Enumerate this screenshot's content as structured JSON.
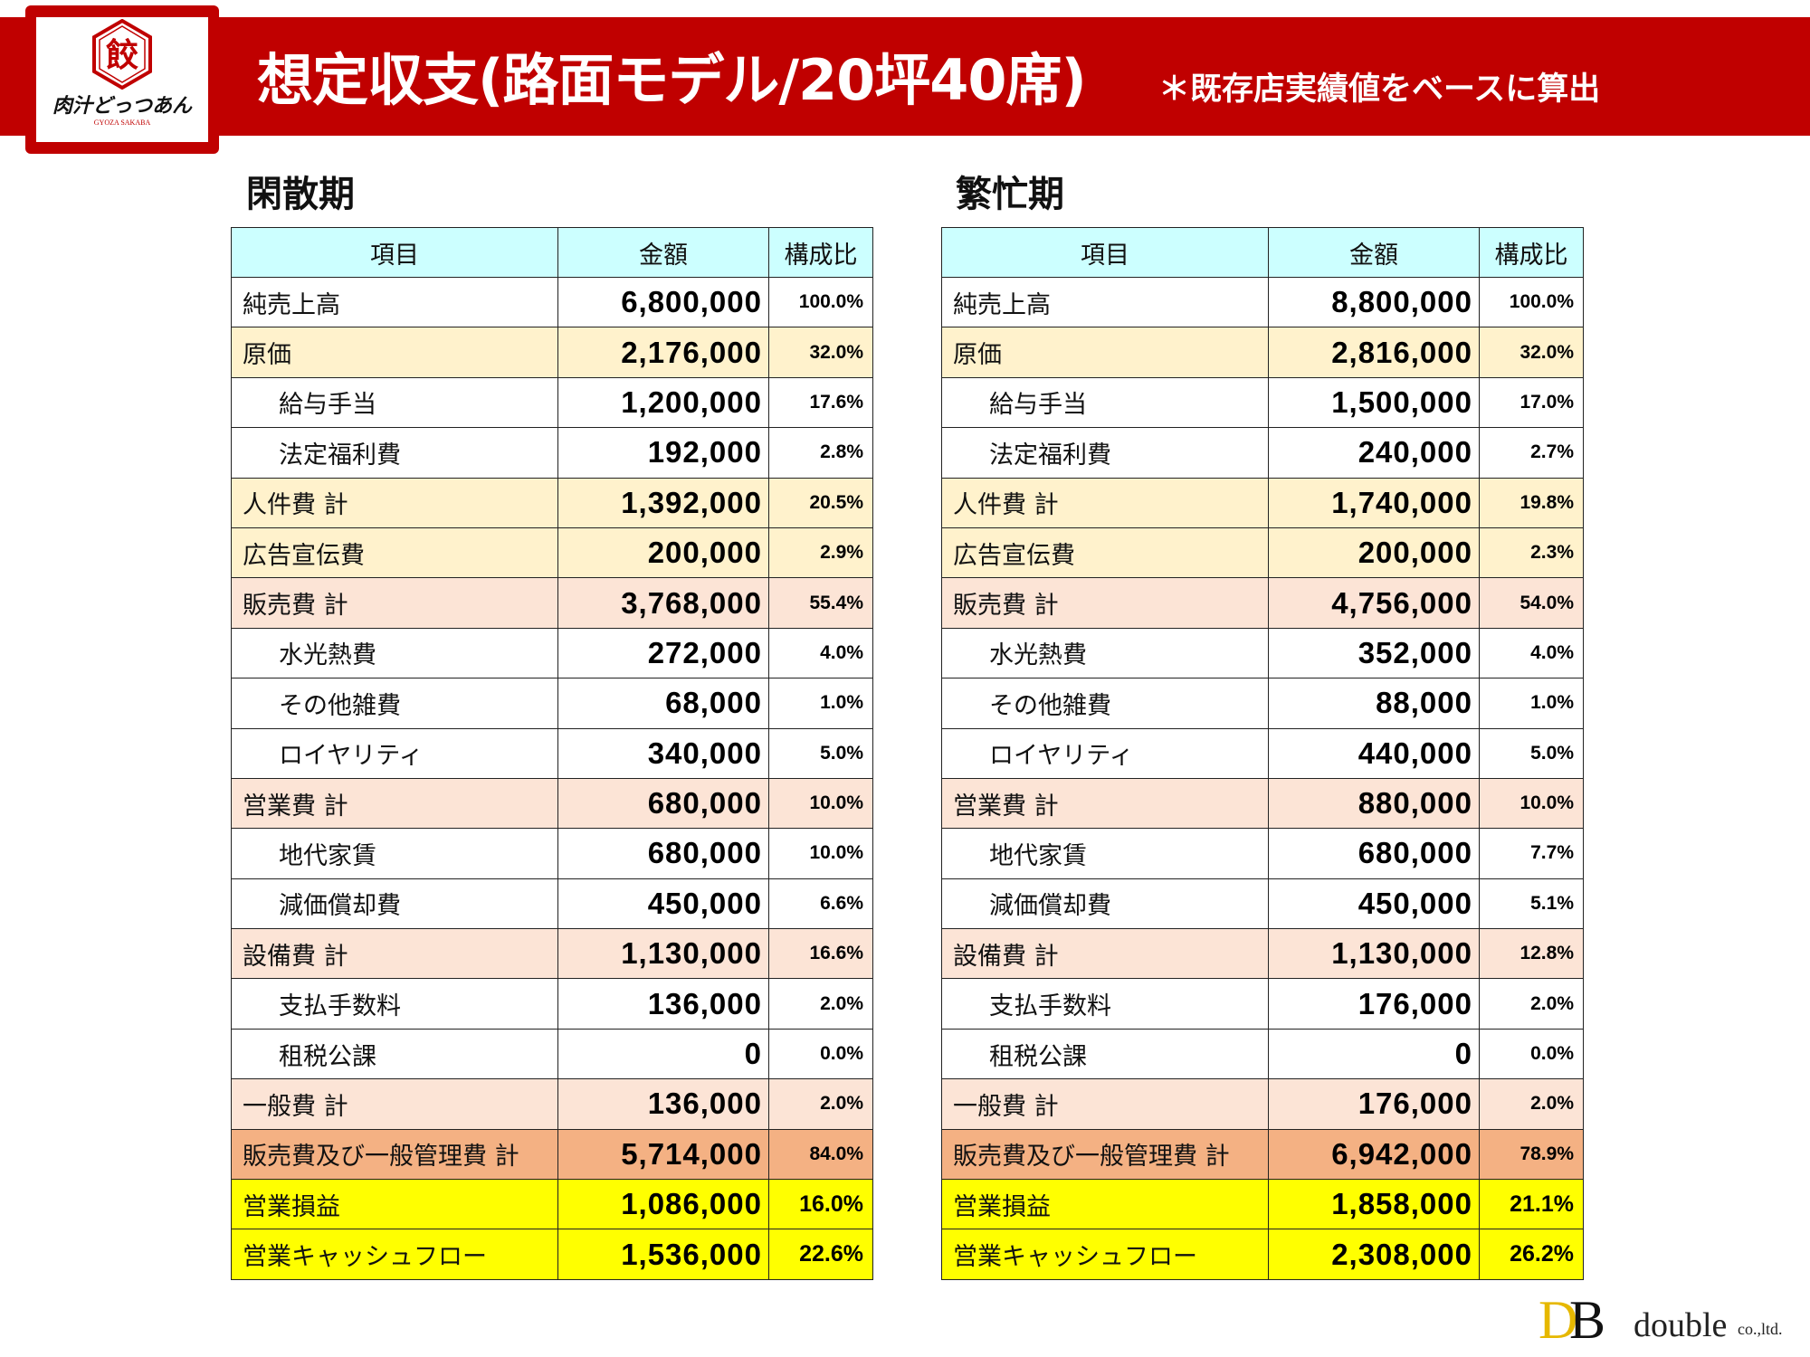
{
  "header": {
    "title": "想定収支(路面モデル/20坪40席)",
    "subtitle": "＊既存店実績値をベースに算出",
    "logo_text": "肉汁どっつあん",
    "logo_sub": "GYOZA SAKABA",
    "logo_mark": "餃"
  },
  "colors": {
    "band": "#c00000",
    "header_cell": "#ccffff",
    "cream": "#fff2cc",
    "peach": "#fce4d6",
    "orange": "#f4b183",
    "yellow": "#ffff00"
  },
  "columns": [
    "項目",
    "金額",
    "構成比"
  ],
  "tables": [
    {
      "title": "閑散期",
      "rows": [
        {
          "label": "純売上高",
          "amount": "6,800,000",
          "ratio": "100.0%",
          "style": "white",
          "indent": false
        },
        {
          "label": "原価",
          "amount": "2,176,000",
          "ratio": "32.0%",
          "style": "cream",
          "indent": false
        },
        {
          "label": "給与手当",
          "amount": "1,200,000",
          "ratio": "17.6%",
          "style": "white",
          "indent": true
        },
        {
          "label": "法定福利費",
          "amount": "192,000",
          "ratio": "2.8%",
          "style": "white",
          "indent": true
        },
        {
          "label": "人件費 計",
          "amount": "1,392,000",
          "ratio": "20.5%",
          "style": "cream",
          "indent": false
        },
        {
          "label": "広告宣伝費",
          "amount": "200,000",
          "ratio": "2.9%",
          "style": "cream",
          "indent": false
        },
        {
          "label": "販売費 計",
          "amount": "3,768,000",
          "ratio": "55.4%",
          "style": "peach",
          "indent": false
        },
        {
          "label": "水光熱費",
          "amount": "272,000",
          "ratio": "4.0%",
          "style": "white",
          "indent": true
        },
        {
          "label": "その他雑費",
          "amount": "68,000",
          "ratio": "1.0%",
          "style": "white",
          "indent": true
        },
        {
          "label": "ロイヤリティ",
          "amount": "340,000",
          "ratio": "5.0%",
          "style": "white",
          "indent": true
        },
        {
          "label": "営業費 計",
          "amount": "680,000",
          "ratio": "10.0%",
          "style": "peach",
          "indent": false
        },
        {
          "label": "地代家賃",
          "amount": "680,000",
          "ratio": "10.0%",
          "style": "white",
          "indent": true
        },
        {
          "label": "減価償却費",
          "amount": "450,000",
          "ratio": "6.6%",
          "style": "white",
          "indent": true
        },
        {
          "label": "設備費 計",
          "amount": "1,130,000",
          "ratio": "16.6%",
          "style": "peach",
          "indent": false
        },
        {
          "label": "支払手数料",
          "amount": "136,000",
          "ratio": "2.0%",
          "style": "white",
          "indent": true
        },
        {
          "label": "租税公課",
          "amount": "0",
          "ratio": "0.0%",
          "style": "white",
          "indent": true
        },
        {
          "label": "一般費 計",
          "amount": "136,000",
          "ratio": "2.0%",
          "style": "peach",
          "indent": false
        },
        {
          "label": "販売費及び一般管理費 計",
          "amount": "5,714,000",
          "ratio": "84.0%",
          "style": "orange",
          "indent": false
        },
        {
          "label": "営業損益",
          "amount": "1,086,000",
          "ratio": "16.0%",
          "style": "yellow",
          "indent": false
        },
        {
          "label": "営業キャッシュフロー",
          "amount": "1,536,000",
          "ratio": "22.6%",
          "style": "yellow",
          "indent": false
        }
      ]
    },
    {
      "title": "繁忙期",
      "rows": [
        {
          "label": "純売上高",
          "amount": "8,800,000",
          "ratio": "100.0%",
          "style": "white",
          "indent": false
        },
        {
          "label": "原価",
          "amount": "2,816,000",
          "ratio": "32.0%",
          "style": "cream",
          "indent": false
        },
        {
          "label": "給与手当",
          "amount": "1,500,000",
          "ratio": "17.0%",
          "style": "white",
          "indent": true
        },
        {
          "label": "法定福利費",
          "amount": "240,000",
          "ratio": "2.7%",
          "style": "white",
          "indent": true
        },
        {
          "label": "人件費 計",
          "amount": "1,740,000",
          "ratio": "19.8%",
          "style": "cream",
          "indent": false
        },
        {
          "label": "広告宣伝費",
          "amount": "200,000",
          "ratio": "2.3%",
          "style": "cream",
          "indent": false
        },
        {
          "label": "販売費 計",
          "amount": "4,756,000",
          "ratio": "54.0%",
          "style": "peach",
          "indent": false
        },
        {
          "label": "水光熱費",
          "amount": "352,000",
          "ratio": "4.0%",
          "style": "white",
          "indent": true
        },
        {
          "label": "その他雑費",
          "amount": "88,000",
          "ratio": "1.0%",
          "style": "white",
          "indent": true
        },
        {
          "label": "ロイヤリティ",
          "amount": "440,000",
          "ratio": "5.0%",
          "style": "white",
          "indent": true
        },
        {
          "label": "営業費 計",
          "amount": "880,000",
          "ratio": "10.0%",
          "style": "peach",
          "indent": false
        },
        {
          "label": "地代家賃",
          "amount": "680,000",
          "ratio": "7.7%",
          "style": "white",
          "indent": true
        },
        {
          "label": "減価償却費",
          "amount": "450,000",
          "ratio": "5.1%",
          "style": "white",
          "indent": true
        },
        {
          "label": "設備費 計",
          "amount": "1,130,000",
          "ratio": "12.8%",
          "style": "peach",
          "indent": false
        },
        {
          "label": "支払手数料",
          "amount": "176,000",
          "ratio": "2.0%",
          "style": "white",
          "indent": true
        },
        {
          "label": "租税公課",
          "amount": "0",
          "ratio": "0.0%",
          "style": "white",
          "indent": true
        },
        {
          "label": "一般費 計",
          "amount": "176,000",
          "ratio": "2.0%",
          "style": "peach",
          "indent": false
        },
        {
          "label": "販売費及び一般管理費 計",
          "amount": "6,942,000",
          "ratio": "78.9%",
          "style": "orange",
          "indent": false
        },
        {
          "label": "営業損益",
          "amount": "1,858,000",
          "ratio": "21.1%",
          "style": "yellow",
          "indent": false
        },
        {
          "label": "営業キャッシュフロー",
          "amount": "2,308,000",
          "ratio": "26.2%",
          "style": "yellow",
          "indent": false
        }
      ]
    }
  ],
  "footer": {
    "logo_d": "D",
    "logo_b": "B",
    "logo_word": "double",
    "logo_suffix": "co.,ltd."
  }
}
